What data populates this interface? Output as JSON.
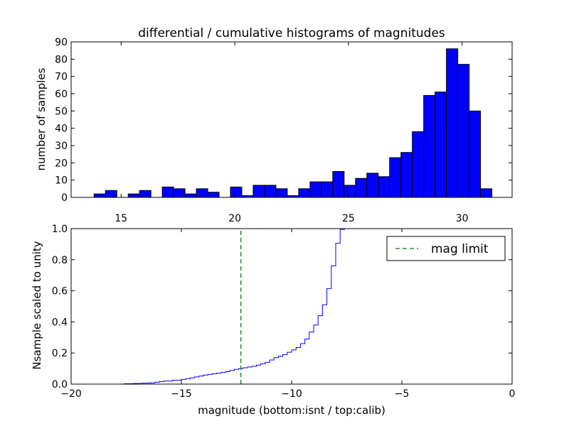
{
  "chart_data": [
    {
      "type": "bar",
      "title": "differential / cumulative histograms of magnitudes",
      "ylabel": "number of samples",
      "xlabel": "",
      "xlim": [
        12.8,
        32.2
      ],
      "ylim": [
        0,
        90
      ],
      "x_ticks": [
        15,
        20,
        25,
        30
      ],
      "y_ticks": [
        0,
        10,
        20,
        30,
        40,
        50,
        60,
        70,
        80,
        90
      ],
      "bin_edges": [
        13.81,
        14.31,
        14.81,
        15.31,
        15.81,
        16.31,
        16.81,
        17.31,
        17.81,
        18.31,
        18.81,
        19.31,
        19.81,
        20.31,
        20.81,
        21.31,
        21.81,
        22.31,
        22.81,
        23.31,
        23.81,
        24.31,
        24.81,
        25.31,
        25.81,
        26.31,
        26.81,
        27.31,
        27.81,
        28.31,
        28.81,
        29.31,
        29.81,
        30.31,
        30.81,
        31.31
      ],
      "counts": [
        2,
        4,
        0,
        2,
        4,
        0,
        6,
        5,
        2,
        5,
        3,
        0,
        6,
        1,
        7,
        7,
        5,
        1,
        5,
        9,
        9,
        15,
        7,
        11,
        14,
        12,
        23,
        26,
        38,
        59,
        61,
        86,
        77,
        50,
        5
      ],
      "bar_color": "#0000ff",
      "grid": false
    },
    {
      "type": "line",
      "title": "",
      "xlabel": "magnitude (bottom:isnt / top:calib)",
      "ylabel": "Nsample scaled to unity",
      "xlim": [
        -20,
        0
      ],
      "ylim": [
        0,
        1.0
      ],
      "x_ticks": [
        -20,
        -15,
        -10,
        -5,
        0
      ],
      "x_tick_labels": [
        "−20",
        "−15",
        "−10",
        "−5",
        "0"
      ],
      "y_ticks": [
        0,
        0.2,
        0.4,
        0.6,
        0.8,
        1.0
      ],
      "y_tick_labels": [
        "0.0",
        "0.2",
        "0.4",
        "0.6",
        "0.8",
        "1.0"
      ],
      "series": [
        {
          "style": "step",
          "color": "#0000ff",
          "x": [
            -18,
            -17.6,
            -17.2,
            -16.8,
            -16.4,
            -16.2,
            -16.0,
            -15.8,
            -15.4,
            -15.0,
            -14.8,
            -14.6,
            -14.4,
            -14.2,
            -14.0,
            -13.8,
            -13.6,
            -13.4,
            -13.2,
            -13.0,
            -12.8,
            -12.6,
            -12.4,
            -12.2,
            -12.0,
            -11.8,
            -11.6,
            -11.4,
            -11.2,
            -11.0,
            -10.8,
            -10.6,
            -10.4,
            -10.2,
            -10.0,
            -9.8,
            -9.6,
            -9.4,
            -9.2,
            -9.0,
            -8.8,
            -8.6,
            -8.4,
            -8.2,
            -8.0,
            -7.8,
            -7.6
          ],
          "y": [
            0.0,
            0.002,
            0.004,
            0.006,
            0.008,
            0.012,
            0.016,
            0.02,
            0.025,
            0.03,
            0.035,
            0.04,
            0.046,
            0.052,
            0.058,
            0.062,
            0.066,
            0.07,
            0.075,
            0.08,
            0.088,
            0.095,
            0.1,
            0.105,
            0.11,
            0.115,
            0.122,
            0.13,
            0.14,
            0.155,
            0.17,
            0.18,
            0.19,
            0.205,
            0.22,
            0.235,
            0.26,
            0.29,
            0.335,
            0.38,
            0.44,
            0.51,
            0.615,
            0.76,
            0.905,
            0.995,
            1.0
          ]
        },
        {
          "name": "mag limit",
          "style": "dashed",
          "color": "#008000",
          "x": [
            -12.3,
            -12.3
          ],
          "y": [
            0,
            1.0
          ]
        }
      ],
      "legend": {
        "placement": "top-right",
        "entries": [
          "mag limit"
        ]
      },
      "grid": false
    }
  ]
}
